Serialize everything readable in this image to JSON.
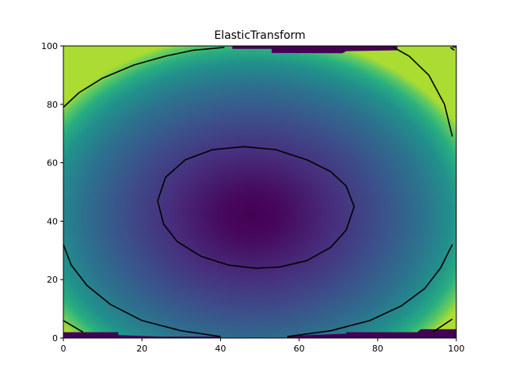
{
  "chart_data": {
    "type": "heatmap",
    "title": "ElasticTransform",
    "xlabel": "",
    "ylabel": "",
    "xlim": [
      0,
      100
    ],
    "ylim": [
      0,
      100
    ],
    "x_ticks": [
      0,
      20,
      40,
      60,
      80,
      100
    ],
    "y_ticks": [
      0,
      20,
      40,
      60,
      80,
      100
    ],
    "colormap": "viridis",
    "field_minimum": {
      "x": 48,
      "y": 45
    },
    "contours": [
      {
        "name": "inner",
        "points": [
          [
            24,
            47
          ],
          [
            26,
            55
          ],
          [
            31,
            61
          ],
          [
            38,
            64.5
          ],
          [
            46,
            65.5
          ],
          [
            54,
            64.5
          ],
          [
            62,
            61
          ],
          [
            68,
            57
          ],
          [
            72,
            52
          ],
          [
            74,
            45
          ],
          [
            72,
            37
          ],
          [
            68,
            31
          ],
          [
            62,
            26.5
          ],
          [
            55,
            24.3
          ],
          [
            49,
            23.9
          ],
          [
            42,
            25
          ],
          [
            35,
            28
          ],
          [
            29,
            33
          ],
          [
            25.5,
            39
          ],
          [
            24,
            47
          ]
        ]
      },
      {
        "name": "outer-top",
        "points": [
          [
            0,
            79
          ],
          [
            4,
            84
          ],
          [
            10,
            89
          ],
          [
            18,
            93.5
          ],
          [
            26,
            96.5
          ],
          [
            33,
            98.5
          ],
          [
            41,
            99.5
          ]
        ]
      },
      {
        "name": "outer-top-right",
        "points": [
          [
            84,
            99.5
          ],
          [
            88,
            96.5
          ],
          [
            93,
            90
          ],
          [
            97,
            80
          ],
          [
            99,
            69
          ]
        ]
      },
      {
        "name": "outer-bottom-left",
        "points": [
          [
            0,
            32
          ],
          [
            2,
            25
          ],
          [
            6,
            18
          ],
          [
            12,
            11.5
          ],
          [
            20,
            6
          ],
          [
            30,
            2.5
          ],
          [
            40,
            0.5
          ]
        ]
      },
      {
        "name": "outer-bottom-right",
        "points": [
          [
            57,
            0.5
          ],
          [
            68,
            2.5
          ],
          [
            78,
            6
          ],
          [
            86,
            11
          ],
          [
            92,
            17
          ],
          [
            96,
            24
          ],
          [
            99,
            32
          ]
        ]
      },
      {
        "name": "corner-bottom-left",
        "points": [
          [
            0,
            6
          ],
          [
            5,
            2
          ]
        ]
      },
      {
        "name": "corner-bottom-right",
        "points": [
          [
            94,
            2
          ],
          [
            99,
            6.5
          ]
        ]
      },
      {
        "name": "corner-top-right",
        "points": [
          [
            98.5,
            99.5
          ],
          [
            99.5,
            98.5
          ]
        ]
      }
    ],
    "artifact_regions": [
      {
        "name": "bottom-left",
        "points": [
          [
            0,
            0
          ],
          [
            0,
            2
          ],
          [
            14,
            2
          ],
          [
            14,
            1
          ],
          [
            25,
            0.5
          ],
          [
            40,
            0.5
          ],
          [
            40,
            0
          ]
        ]
      },
      {
        "name": "bottom-right",
        "points": [
          [
            57,
            0
          ],
          [
            57,
            0.7
          ],
          [
            72,
            1.5
          ],
          [
            72,
            2
          ],
          [
            90,
            2
          ],
          [
            91,
            3
          ],
          [
            100,
            3
          ],
          [
            100,
            0
          ]
        ]
      },
      {
        "name": "top-middle",
        "points": [
          [
            43,
            99
          ],
          [
            43,
            100
          ],
          [
            85,
            100
          ],
          [
            85,
            98.5
          ],
          [
            72,
            98.2
          ],
          [
            71,
            97.5
          ],
          [
            53,
            97.6
          ],
          [
            53,
            99
          ]
        ]
      },
      {
        "name": "top-sliver",
        "points": [
          [
            99,
            99.8
          ],
          [
            100,
            99.8
          ],
          [
            100,
            99.4
          ],
          [
            99,
            99.4
          ]
        ]
      }
    ]
  },
  "colors": {
    "contour": "#000000",
    "artifact": "#440154",
    "axis": "#000000",
    "background": "#ffffff"
  }
}
